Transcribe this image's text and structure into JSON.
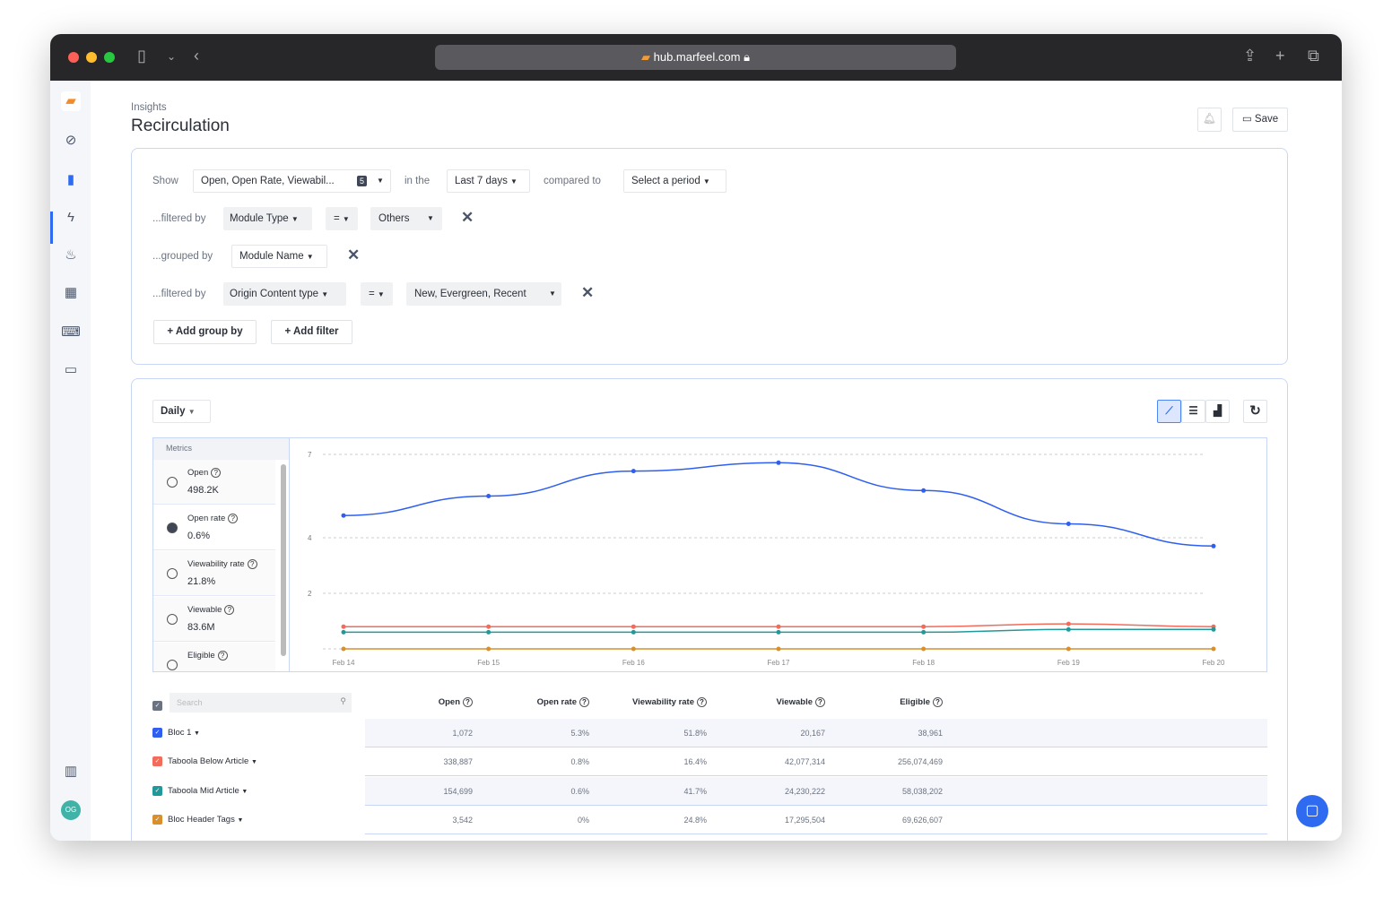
{
  "browser": {
    "url": "hub.marfeel.com"
  },
  "header": {
    "breadcrumb": "Insights",
    "title": "Recirculation",
    "save_label": "Save"
  },
  "query": {
    "show_label": "Show",
    "show_value": "Open, Open Rate, Viewabil...",
    "show_count": "5",
    "in_the_label": "in the",
    "period": "Last 7 days",
    "compared_label": "compared to",
    "compare_value": "Select a period",
    "filter1": {
      "label": "...filtered by",
      "field": "Module Type",
      "op": "=",
      "value": "Others"
    },
    "group": {
      "label": "...grouped by",
      "field": "Module Name"
    },
    "filter2": {
      "label": "...filtered by",
      "field": "Origin Content type",
      "op": "=",
      "value": "New, Evergreen, Recent"
    },
    "add_group_label": "+ Add group by",
    "add_filter_label": "+ Add filter"
  },
  "chart_panel": {
    "granularity": "Daily",
    "metrics_header": "Metrics",
    "metrics": [
      {
        "name": "Open",
        "value": "498.2K",
        "selected": false
      },
      {
        "name": "Open rate",
        "value": "0.6%",
        "selected": true
      },
      {
        "name": "Viewability rate",
        "value": "21.8%",
        "selected": false
      },
      {
        "name": "Viewable",
        "value": "83.6M",
        "selected": false
      },
      {
        "name": "Eligible",
        "value": "",
        "selected": false
      }
    ]
  },
  "chart_data": {
    "type": "line",
    "title": "",
    "xlabel": "",
    "ylabel": "Open rate",
    "x": [
      "Feb 14",
      "Feb 15",
      "Feb 16",
      "Feb 17",
      "Feb 18",
      "Feb 19",
      "Feb 20"
    ],
    "yticks": [
      2,
      4,
      7
    ],
    "ylim": [
      0,
      7
    ],
    "series": [
      {
        "name": "Bloc 1",
        "color": "#2f5ff0",
        "values": [
          4.8,
          5.5,
          6.4,
          6.7,
          5.7,
          4.5,
          3.7
        ]
      },
      {
        "name": "Taboola Below Article",
        "color": "#f26b5b",
        "values": [
          0.8,
          0.8,
          0.8,
          0.8,
          0.8,
          0.9,
          0.8
        ]
      },
      {
        "name": "Taboola Mid Article",
        "color": "#21999a",
        "values": [
          0.6,
          0.6,
          0.6,
          0.6,
          0.6,
          0.7,
          0.7
        ]
      },
      {
        "name": "Bloc Header Tags",
        "color": "#d98f2b",
        "values": [
          0,
          0,
          0,
          0,
          0,
          0,
          0
        ]
      }
    ]
  },
  "table": {
    "search_placeholder": "Search",
    "columns": [
      "Open",
      "Open rate",
      "Viewability rate",
      "Viewable",
      "Eligible"
    ],
    "rows": [
      {
        "name": "Bloc 1",
        "color": "#2f5ff0",
        "values": [
          "1,072",
          "5.3%",
          "51.8%",
          "20,167",
          "38,961"
        ]
      },
      {
        "name": "Taboola Below Article",
        "color": "#f26b5b",
        "values": [
          "338,887",
          "0.8%",
          "16.4%",
          "42,077,314",
          "256,074,469"
        ]
      },
      {
        "name": "Taboola Mid Article",
        "color": "#21999a",
        "values": [
          "154,699",
          "0.6%",
          "41.7%",
          "24,230,222",
          "58,038,202"
        ]
      },
      {
        "name": "Bloc Header Tags",
        "color": "#d98f2b",
        "values": [
          "3,542",
          "0%",
          "24.8%",
          "17,295,504",
          "69,626,607"
        ]
      }
    ]
  },
  "sidebar": {
    "avatar": "OG"
  }
}
